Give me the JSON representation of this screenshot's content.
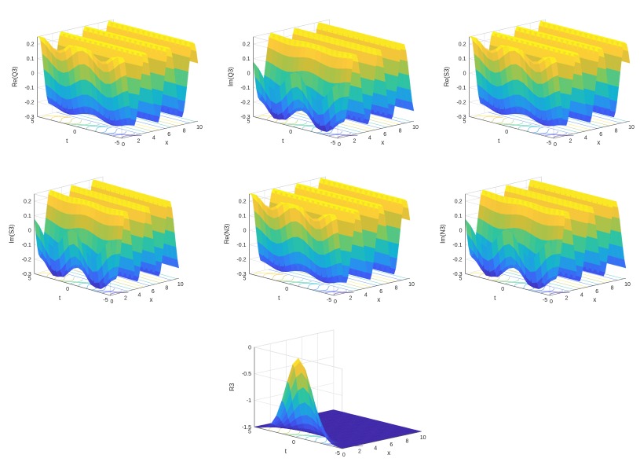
{
  "figure": {
    "background": "#ffffff"
  },
  "colormap": [
    "#3e26a8",
    "#4058f4",
    "#2a8cf2",
    "#14b2d1",
    "#2ec4a0",
    "#80c85c",
    "#d1bd38",
    "#fbc83a",
    "#f9fb15"
  ],
  "chart_data": [
    {
      "type": "surface",
      "title": "",
      "zlabel": "Re(Q3)",
      "xlabel": "x",
      "ylabel": "t",
      "xticks": [
        "0",
        "2",
        "4",
        "6",
        "8",
        "10"
      ],
      "yticks": [
        "5",
        "0",
        "-5"
      ],
      "zticks": [
        "0.2",
        "0.1",
        "0",
        "-0.1",
        "-0.2",
        "-0.3"
      ],
      "xlim": [
        0,
        10
      ],
      "ylim": [
        -5,
        5
      ],
      "zlim": [
        -0.3,
        0.25
      ],
      "wave_amplitude": 0.25,
      "wave_period_x": 3.14,
      "phase": 0.0,
      "localized_hump": 0.06,
      "contour_plane": true
    },
    {
      "type": "surface",
      "title": "",
      "zlabel": "Im(Q3)",
      "xlabel": "x",
      "ylabel": "t",
      "xticks": [
        "0",
        "2",
        "4",
        "6",
        "8",
        "10"
      ],
      "yticks": [
        "5",
        "0",
        "-5"
      ],
      "zticks": [
        "0.2",
        "0.1",
        "0",
        "-0.1",
        "-0.2",
        "-0.3"
      ],
      "xlim": [
        0,
        10
      ],
      "ylim": [
        -5,
        5
      ],
      "zlim": [
        -0.3,
        0.25
      ],
      "wave_amplitude": 0.25,
      "wave_period_x": 3.14,
      "phase": 1.57,
      "localized_hump": 0.08,
      "contour_plane": true
    },
    {
      "type": "surface",
      "title": "",
      "zlabel": "Re(S3)",
      "xlabel": "x",
      "ylabel": "t",
      "xticks": [
        "0",
        "2",
        "4",
        "6",
        "8",
        "10"
      ],
      "yticks": [
        "5",
        "0",
        "-5"
      ],
      "zticks": [
        "0.2",
        "0.1",
        "0",
        "-0.1",
        "-0.2",
        "-0.3"
      ],
      "xlim": [
        0,
        10
      ],
      "ylim": [
        -5,
        5
      ],
      "zlim": [
        -0.3,
        0.25
      ],
      "wave_amplitude": 0.25,
      "wave_period_x": 3.14,
      "phase": 0.0,
      "localized_hump": 0.06,
      "contour_plane": true
    },
    {
      "type": "surface",
      "title": "",
      "zlabel": "Im(S3)",
      "xlabel": "x",
      "ylabel": "t",
      "xticks": [
        "0",
        "2",
        "4",
        "6",
        "8",
        "10"
      ],
      "yticks": [
        "5",
        "0",
        "-5"
      ],
      "zticks": [
        "0.2",
        "0.1",
        "0",
        "-0.1",
        "-0.2",
        "-0.3"
      ],
      "xlim": [
        0,
        10
      ],
      "ylim": [
        -5,
        5
      ],
      "zlim": [
        -0.3,
        0.25
      ],
      "wave_amplitude": 0.25,
      "wave_period_x": 3.14,
      "phase": 1.57,
      "localized_hump": 0.08,
      "contour_plane": true
    },
    {
      "type": "surface",
      "title": "",
      "zlabel": "Re(N3)",
      "xlabel": "x",
      "ylabel": "t",
      "xticks": [
        "0",
        "2",
        "4",
        "6",
        "8",
        "10"
      ],
      "yticks": [
        "5",
        "0",
        "-5"
      ],
      "zticks": [
        "0.2",
        "0.1",
        "0",
        "-0.1",
        "-0.2",
        "-0.3"
      ],
      "xlim": [
        0,
        10
      ],
      "ylim": [
        -5,
        5
      ],
      "zlim": [
        -0.3,
        0.25
      ],
      "wave_amplitude": 0.25,
      "wave_period_x": 3.14,
      "phase": 0.0,
      "localized_hump": 0.06,
      "contour_plane": true
    },
    {
      "type": "surface",
      "title": "",
      "zlabel": "Im(N3)",
      "xlabel": "x",
      "ylabel": "t",
      "xticks": [
        "0",
        "2",
        "4",
        "6",
        "8",
        "10"
      ],
      "yticks": [
        "5",
        "0",
        "-5"
      ],
      "zticks": [
        "0.2",
        "0.1",
        "0",
        "-0.1",
        "-0.2",
        "-0.3"
      ],
      "xlim": [
        0,
        10
      ],
      "ylim": [
        -5,
        5
      ],
      "zlim": [
        -0.3,
        0.25
      ],
      "wave_amplitude": 0.25,
      "wave_period_x": 3.14,
      "phase": 1.57,
      "localized_hump": 0.08,
      "contour_plane": true
    },
    {
      "type": "surface",
      "title": "",
      "zlabel": "R3",
      "xlabel": "x",
      "ylabel": "t",
      "xticks": [
        "0",
        "2",
        "4",
        "6",
        "8",
        "10"
      ],
      "yticks": [
        "5",
        "0",
        "-5"
      ],
      "zticks": [
        "0",
        "-0.5",
        "-1",
        "-1.5"
      ],
      "xlim": [
        0,
        10
      ],
      "ylim": [
        -5,
        5
      ],
      "zlim": [
        -1.5,
        0
      ],
      "wave_amplitude": 0,
      "peak_depth": -1.5,
      "peak_width_x": 0.9,
      "peak_width_t": 2.0,
      "contour_plane": true
    }
  ]
}
